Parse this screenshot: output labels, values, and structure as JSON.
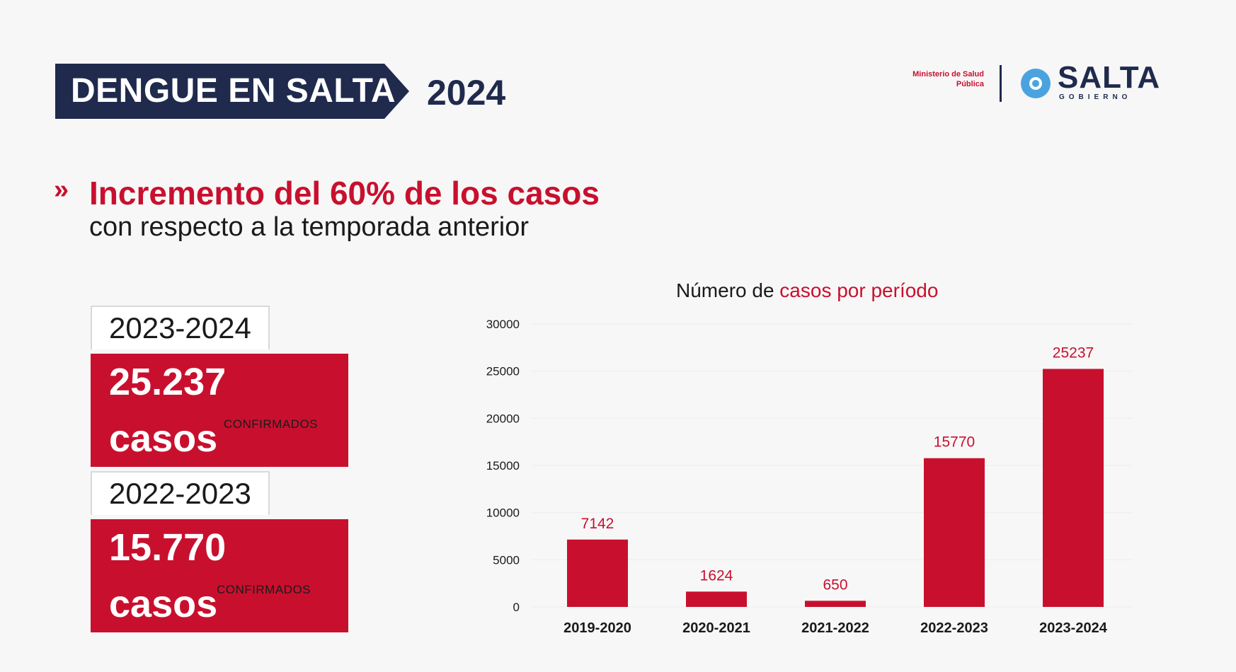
{
  "header": {
    "title": "DENGUE EN SALTA",
    "year": "2024",
    "logo_ministry": "Ministerio de Salud Pública",
    "logo_name": "SALTA",
    "logo_sub": "GOBIERNO"
  },
  "headline": {
    "chevron": "»",
    "line1": "Incremento del 60% de los casos",
    "line2": "con respecto a la temporada anterior"
  },
  "summary": [
    {
      "season": "2023-2024",
      "cases": "25.237 casos",
      "label": "CONFIRMADOS"
    },
    {
      "season": "2022-2023",
      "cases": "15.770 casos",
      "label": "CONFIRMADOS"
    }
  ],
  "colors": {
    "accent": "#c8102e",
    "navy": "#1f2a4d"
  },
  "chart_data": {
    "type": "bar",
    "title_part1": "Número de ",
    "title_part2": "casos por período",
    "categories": [
      "2019-2020",
      "2020-2021",
      "2021-2022",
      "2022-2023",
      "2023-2024"
    ],
    "values": [
      7142,
      1624,
      650,
      15770,
      25237
    ],
    "value_labels": [
      "7142",
      "1624",
      "650",
      "15770",
      "25237"
    ],
    "yticks": [
      0,
      5000,
      10000,
      15000,
      20000,
      25000,
      30000
    ],
    "ylim": [
      0,
      30000
    ],
    "grid": true
  }
}
